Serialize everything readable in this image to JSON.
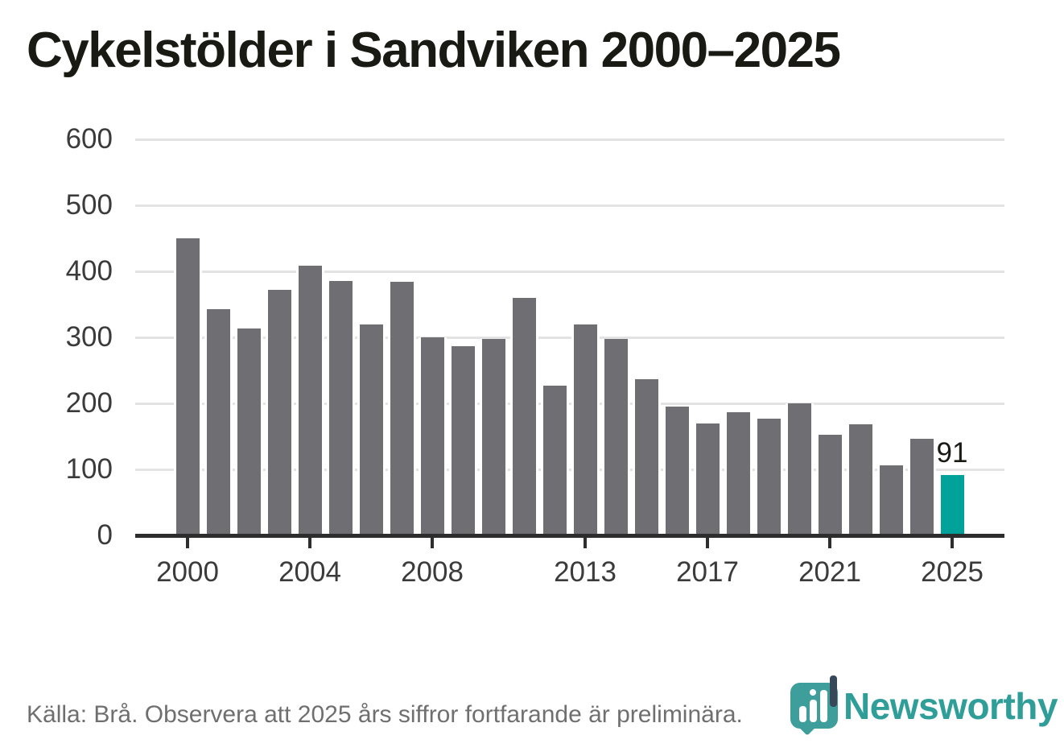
{
  "title": "Cykelstölder i Sandviken 2000–2025",
  "source_note": "Källa: Brå. Observera att 2025 års siffror fortfarande är preliminära.",
  "brand": {
    "name": "Newsworthy",
    "icon": "bar-chart-pin-icon"
  },
  "colors": {
    "bar": "#6e6e73",
    "highlight_bar": "#00a299",
    "gridline": "#e3e3e3",
    "axis": "#2d2d2d",
    "tick_label": "#3b3b3b",
    "title_text": "#1a1a15",
    "source_text": "#6f6f6f",
    "logo_teal": "#3d9e9b",
    "logo_dark": "#374858",
    "wordmark_teal": "#2f9e99"
  },
  "chart_data": {
    "type": "bar",
    "title": "Cykelstölder i Sandviken 2000–2025",
    "x": [
      2000,
      2001,
      2002,
      2003,
      2004,
      2005,
      2006,
      2007,
      2008,
      2009,
      2010,
      2011,
      2012,
      2013,
      2014,
      2015,
      2016,
      2017,
      2018,
      2019,
      2020,
      2021,
      2022,
      2023,
      2024,
      2025
    ],
    "values": [
      450,
      343,
      313,
      372,
      409,
      385,
      320,
      384,
      300,
      286,
      297,
      360,
      227,
      319,
      298,
      237,
      195,
      169,
      186,
      177,
      200,
      153,
      168,
      106,
      146,
      91
    ],
    "highlight_x": 2025,
    "data_label": {
      "x": 2025,
      "text": "91"
    },
    "xlabel": "",
    "ylabel": "",
    "ylim": [
      0,
      600
    ],
    "yticks": [
      0,
      100,
      200,
      300,
      400,
      500,
      600
    ],
    "xtick_years": [
      2000,
      2004,
      2008,
      2013,
      2017,
      2021,
      2025
    ],
    "grid": "horizontal",
    "legend": "none"
  }
}
